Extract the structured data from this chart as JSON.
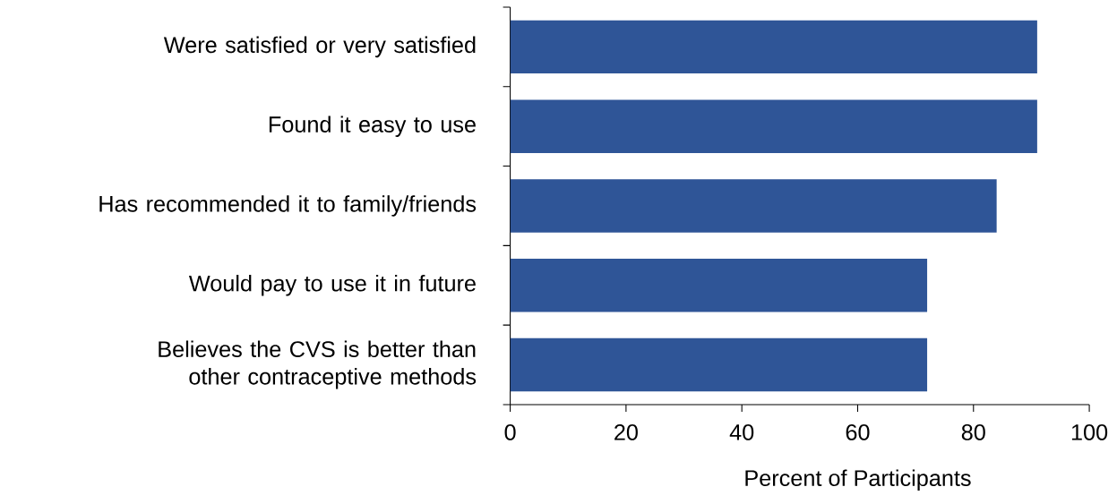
{
  "chart_data": {
    "type": "bar",
    "orientation": "horizontal",
    "xlabel": "Percent of Participants",
    "categories": [
      "Were satisfied or very satisfied",
      "Found it easy to use",
      "Has recommended it to family/friends",
      "Would pay to use it in future",
      "Believes the CVS is better than other contraceptive methods"
    ],
    "values": [
      91,
      91,
      84,
      72,
      72
    ],
    "color": "#2f5597",
    "xlim": [
      0,
      100
    ],
    "xticks": [
      0,
      20,
      40,
      60,
      80,
      100
    ],
    "grid": false
  }
}
